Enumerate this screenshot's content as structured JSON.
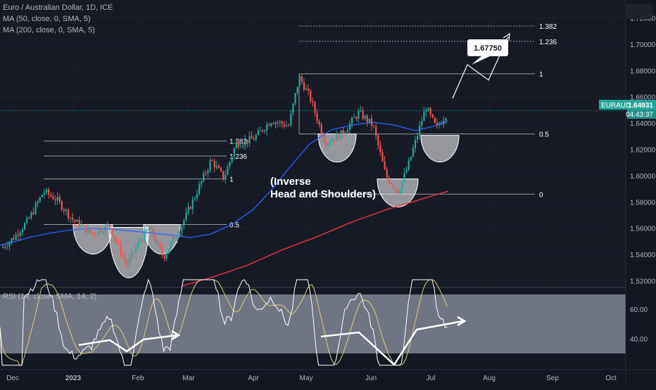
{
  "legend": {
    "title": "Euro / Australian Dollar, 1D, ICE",
    "ma50": "MA (50, close, 0, SMA, 5)",
    "ma200": "MA (200, close, 0, SMA, 5)",
    "rsi": "RSI (14, close, SMA, 14, 2)"
  },
  "colors": {
    "background": "#131722",
    "up": "#26a69a",
    "down": "#ef5350",
    "ma50": "#2962ff",
    "ma200": "#f23645",
    "price_tag": "#26a69a"
  },
  "annotations": {
    "pattern_label_1": "(Inverse",
    "pattern_label_2": "Head and Shoulders)",
    "target_label": "1.67750"
  },
  "price_tag": {
    "symbol": "EURAUD",
    "price": "1.64931",
    "countdown": "04:43:37"
  },
  "chart_data": {
    "type": "candlestick",
    "symbol": "EURAUD",
    "timeframe": "1D",
    "x_ticks": [
      "Dec",
      "2023",
      "Feb",
      "Mar",
      "Apr",
      "May",
      "Jun",
      "Jul",
      "Aug",
      "Sep",
      "Oct"
    ],
    "y_ticks": [
      "1.52000",
      "1.54000",
      "1.56000",
      "1.58000",
      "1.60000",
      "1.62000",
      "1.64000",
      "1.66000",
      "1.68000",
      "1.70000",
      "1.72000"
    ],
    "ylim": [
      1.516,
      1.724
    ],
    "last_price": 1.64931,
    "target_price": 1.6775,
    "fib_right": [
      {
        "label": "1.382",
        "price": 1.7138
      },
      {
        "label": "1.236",
        "price": 1.7022
      },
      {
        "label": "1",
        "price": 1.6775
      },
      {
        "label": "0.5",
        "price": 1.6317
      },
      {
        "label": "0",
        "price": 1.5859
      }
    ],
    "fib_left": [
      {
        "label": "1.382",
        "price": 1.6263
      },
      {
        "label": "1.236",
        "price": 1.6149
      },
      {
        "label": "1",
        "price": 1.5975
      },
      {
        "label": "0.5",
        "price": 1.5628
      }
    ],
    "rsi": {
      "y_ticks": [
        "60.00",
        "40.00"
      ],
      "band": [
        30,
        70
      ]
    }
  }
}
